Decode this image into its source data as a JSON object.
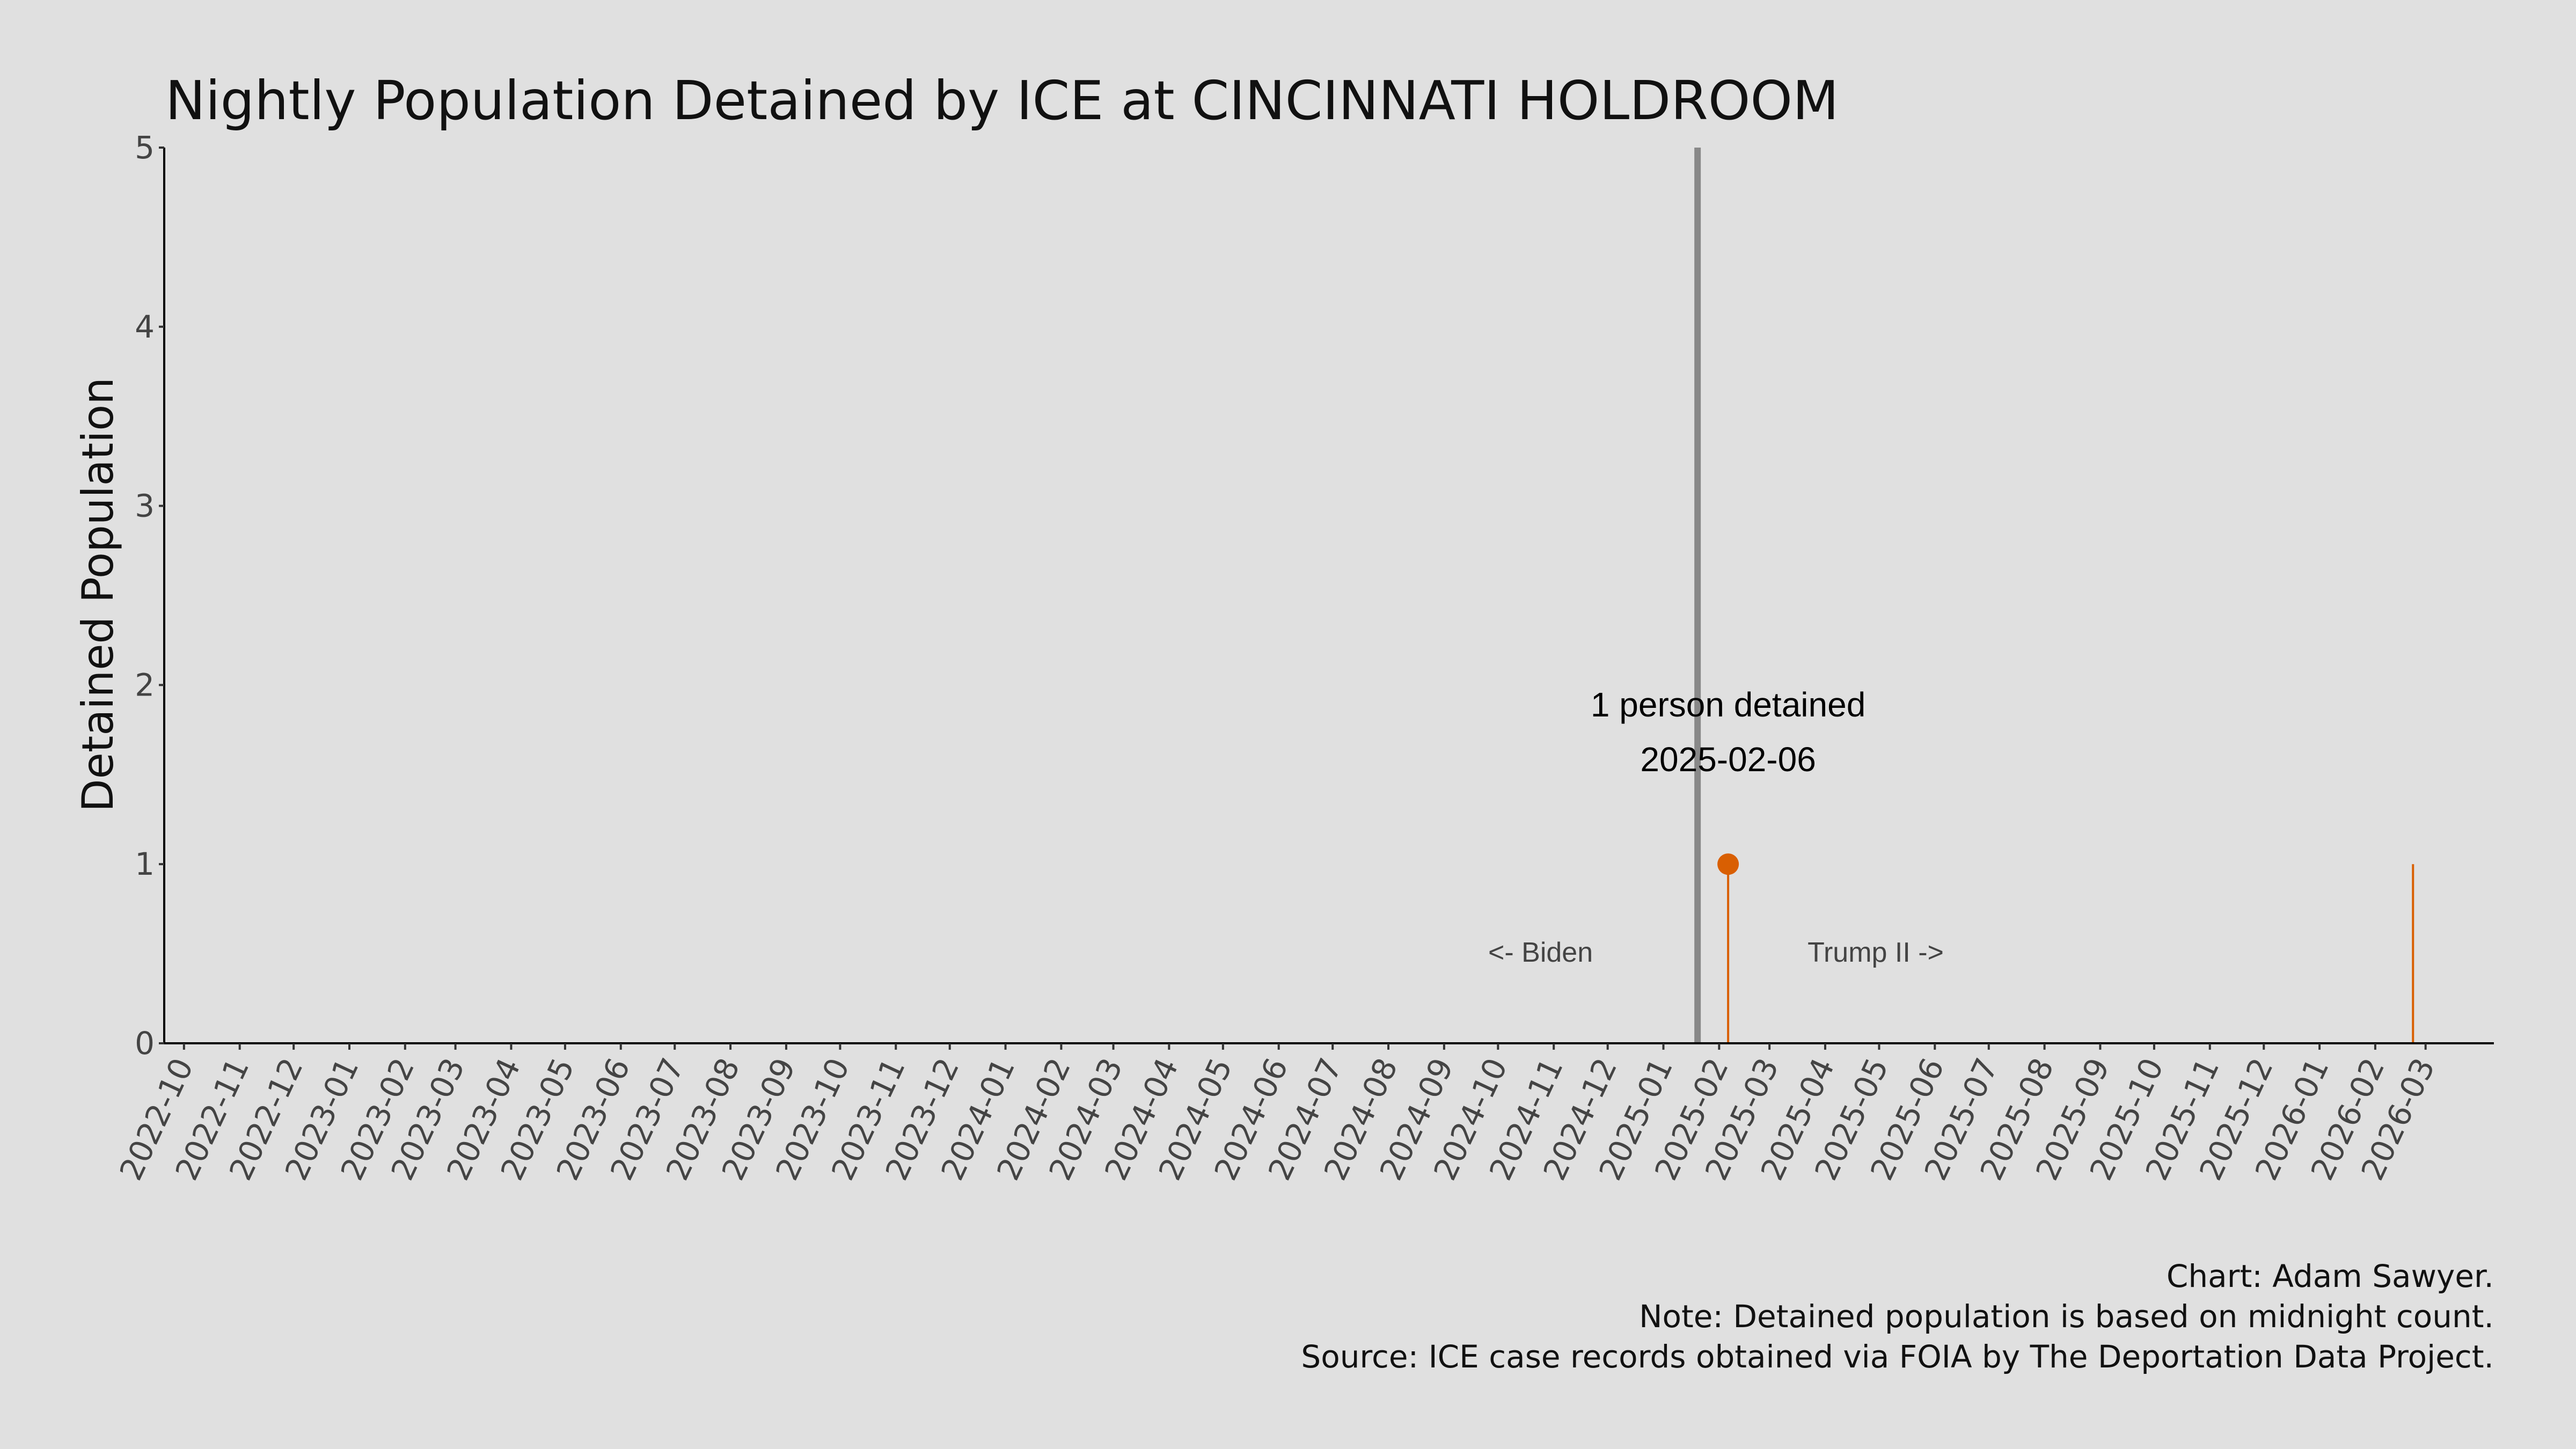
{
  "chart_data": {
    "type": "line",
    "title": "Nightly Population Detained by ICE at CINCINNATI HOLDROOM",
    "xlabel": "",
    "ylabel": "Detained Population",
    "xlim": [
      "2022-09-20",
      "2026-04-08"
    ],
    "ylim": [
      0,
      5
    ],
    "yticks": [
      0,
      1,
      2,
      3,
      4,
      5
    ],
    "xticks": [
      "2022-10",
      "2022-11",
      "2022-12",
      "2023-01",
      "2023-02",
      "2023-03",
      "2023-04",
      "2023-05",
      "2023-06",
      "2023-07",
      "2023-08",
      "2023-09",
      "2023-10",
      "2023-11",
      "2023-12",
      "2024-01",
      "2024-02",
      "2024-03",
      "2024-04",
      "2024-05",
      "2024-06",
      "2024-07",
      "2024-08",
      "2024-09",
      "2024-10",
      "2024-11",
      "2024-12",
      "2025-01",
      "2025-02",
      "2025-03",
      "2025-04",
      "2025-05",
      "2025-06",
      "2025-07",
      "2025-08",
      "2025-09",
      "2025-10",
      "2025-11",
      "2025-12",
      "2026-01",
      "2026-02",
      "2026-03"
    ],
    "grid": false,
    "baseline_value": 0,
    "series": [
      {
        "color": "#d95f02",
        "points": [
          {
            "date": "2025-02-06",
            "value": 1
          },
          {
            "date": "2026-02-22",
            "value": 1
          }
        ]
      }
    ],
    "peak": {
      "date": "2025-02-06",
      "value": 1,
      "label_line1": "1 person detained",
      "label_line2": "2025-02-06"
    },
    "divider": {
      "date": "2025-01-20",
      "color": "#888888",
      "left_label": "<- Biden",
      "right_label": "Trump II ->"
    },
    "footer": [
      "Chart: Adam Sawyer.",
      "Note: Detained population is based on midnight count.",
      "Source: ICE case records obtained via FOIA by The Deportation Data Project."
    ]
  }
}
